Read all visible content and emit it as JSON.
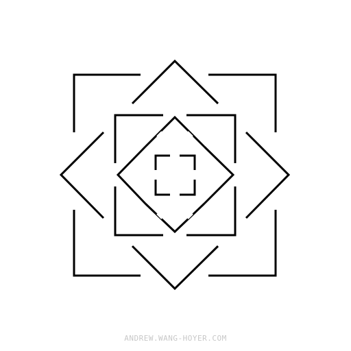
{
  "artwork": {
    "stroke_color": "#000000",
    "background_color": "#ffffff",
    "motif": "nested squares and diamonds with gapped outlines"
  },
  "credit": {
    "text": "ANDREW.WANG-HOYER.COM",
    "color": "#c8c8c8"
  }
}
